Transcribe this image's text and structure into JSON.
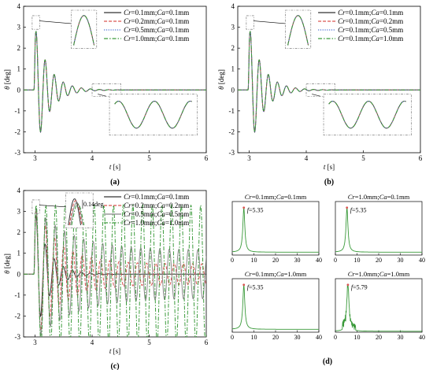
{
  "colors": {
    "s1": "#333333",
    "s2": "#d9534f",
    "s3": "#4a6fd1",
    "s4": "#3a9a3a",
    "axis": "#000000",
    "box": "#555555",
    "peak": "#d9534f"
  },
  "chart_data": [
    {
      "id": "a",
      "panel_label": "(a)",
      "type": "line",
      "ylabel": "θ [deg]",
      "xlabel": "t [s]",
      "xlim": [
        2.8,
        6
      ],
      "ylim": [
        -3,
        4
      ],
      "xticks": [
        "3",
        "4",
        "5",
        "6"
      ],
      "yticks": [
        "-3",
        "-2",
        "-1",
        "0",
        "1",
        "2",
        "3",
        "4"
      ],
      "legend_position": "top-right",
      "series": [
        {
          "name": "Cr=0.1mm;Ca=0.1mm",
          "color": "#333333",
          "dash": "solid",
          "damping": 4.2,
          "freq": 6.3
        },
        {
          "name": "Cr=0.2mm;Ca=0.1mm",
          "color": "#d9534f",
          "dash": "dashed",
          "damping": 4.2,
          "freq": 6.3
        },
        {
          "name": "Cr=0.5mm;Ca=0.1mm",
          "color": "#4a6fd1",
          "dash": "dotted",
          "damping": 4.2,
          "freq": 6.3
        },
        {
          "name": "Cr=1.0mm;Ca=0.1mm",
          "color": "#3a9a3a",
          "dash": "dashdot",
          "damping": 4.2,
          "freq": 6.3
        }
      ],
      "insets": [
        "peak",
        "decay"
      ]
    },
    {
      "id": "b",
      "panel_label": "(b)",
      "type": "line",
      "ylabel": "θ [deg]",
      "xlabel": "t [s]",
      "xlim": [
        2.8,
        6
      ],
      "ylim": [
        -3,
        4
      ],
      "xticks": [
        "3",
        "4",
        "5",
        "6"
      ],
      "yticks": [
        "-3",
        "-2",
        "-1",
        "0",
        "1",
        "2",
        "3",
        "4"
      ],
      "legend_position": "top-right",
      "series": [
        {
          "name": "Cr=0.1mm;Ca=0.1mm",
          "color": "#333333",
          "dash": "solid",
          "damping": 4.2,
          "freq": 6.3
        },
        {
          "name": "Cr=0.1mm;Ca=0.2mm",
          "color": "#d9534f",
          "dash": "dashed",
          "damping": 4.2,
          "freq": 6.3
        },
        {
          "name": "Cr=0.1mm;Ca=0.5mm",
          "color": "#4a6fd1",
          "dash": "dotted",
          "damping": 4.2,
          "freq": 6.3
        },
        {
          "name": "Cr=0.1mm;Ca=1.0mm",
          "color": "#3a9a3a",
          "dash": "dashdot",
          "damping": 4.2,
          "freq": 6.3
        }
      ],
      "insets": [
        "peak",
        "decay"
      ]
    },
    {
      "id": "c",
      "panel_label": "(c)",
      "type": "line",
      "ylabel": "θ [deg]",
      "xlabel": "t [s]",
      "xlim": [
        2.8,
        6
      ],
      "ylim": [
        -3,
        4
      ],
      "xticks": [
        "3",
        "4",
        "5",
        "6"
      ],
      "yticks": [
        "-3",
        "-2",
        "-1",
        "0",
        "1",
        "2",
        "3",
        "4"
      ],
      "legend_position": "top-right",
      "annotation": "0.14deg",
      "series": [
        {
          "name": "Cr=0.1mm;Ca=0.1mm",
          "color": "#333333",
          "dash": "solid",
          "damping": 4.2,
          "freq": 6.3,
          "floor": 0
        },
        {
          "name": "Cr=0.2mm;Ca=0.2mm",
          "color": "#d9534f",
          "dash": "dashed",
          "damping": 2.2,
          "freq": 6.2,
          "floor": 0.15
        },
        {
          "name": "Cr=0.5mm;Ca=0.5mm",
          "color": "#888888",
          "dash": "solid",
          "damping": 1.6,
          "freq": 6.0,
          "floor": 0.35
        },
        {
          "name": "Cr=1.0mm;Ca=1.0mm",
          "color": "#3a9a3a",
          "dash": "dashdot",
          "damping": 0.6,
          "freq": 5.9,
          "floor": 1.0
        }
      ],
      "insets": [
        "peak-split"
      ]
    },
    {
      "id": "d",
      "panel_label": "(d)",
      "type": "line",
      "subplots": [
        {
          "title": "Cr=0.1mm;Ca=0.1mm",
          "peak_label": "f=5.35",
          "peak_f": 5.35,
          "xticks": [
            "0",
            "10",
            "20",
            "30",
            "40"
          ],
          "xlim": [
            0,
            40
          ],
          "noisy": false
        },
        {
          "title": "Cr=1.0mm;Ca=0.1mm",
          "peak_label": "f=5.35",
          "peak_f": 5.35,
          "xticks": [
            "0",
            "10",
            "20",
            "30",
            "40"
          ],
          "xlim": [
            0,
            40
          ],
          "noisy": false
        },
        {
          "title": "Cr=0.1mm;Ca=1.0mm",
          "peak_label": "f=5.35",
          "peak_f": 5.35,
          "xticks": [
            "0",
            "10",
            "20",
            "30",
            "40"
          ],
          "xlim": [
            0,
            40
          ],
          "noisy": false
        },
        {
          "title": "Cr=1.0mm;Ca=1.0mm",
          "peak_label": "f=5.79",
          "peak_f": 5.79,
          "xticks": [
            "0",
            "10",
            "20",
            "30",
            "40"
          ],
          "xlim": [
            0,
            40
          ],
          "noisy": true
        }
      ]
    }
  ]
}
